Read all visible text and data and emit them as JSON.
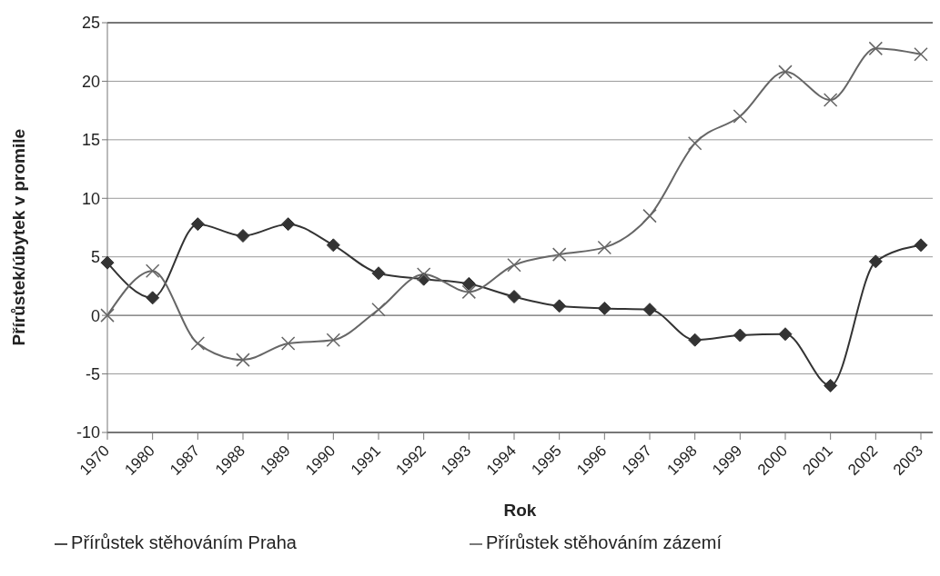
{
  "chart_data": {
    "type": "line",
    "xlabel": "Rok",
    "ylabel": "Přírůstek/úbytek v promile",
    "categories": [
      "1970",
      "1980",
      "1987",
      "1988",
      "1989",
      "1990",
      "1991",
      "1992",
      "1993",
      "1994",
      "1995",
      "1996",
      "1997",
      "1998",
      "1999",
      "2000",
      "2001",
      "2002",
      "2003"
    ],
    "series": [
      {
        "name": "Přírůstek stěhováním Praha",
        "color": "#333333",
        "marker": "diamond",
        "values": [
          4.5,
          1.5,
          7.8,
          6.8,
          7.8,
          6.0,
          3.6,
          3.1,
          2.7,
          1.6,
          0.8,
          0.6,
          0.5,
          -2.1,
          -1.7,
          -1.6,
          -6.0,
          4.6,
          6.0
        ]
      },
      {
        "name": "Přírůstek stěhováním zázemí",
        "color": "#666666",
        "marker": "cross",
        "values": [
          0,
          3.8,
          -2.4,
          -3.8,
          -2.4,
          -2.1,
          0.5,
          3.5,
          2.0,
          4.3,
          5.2,
          5.8,
          8.5,
          14.7,
          17.0,
          20.8,
          18.4,
          22.8,
          22.3
        ]
      }
    ],
    "ylim": [
      -10,
      25
    ],
    "yticks": [
      -10,
      -5,
      0,
      5,
      10,
      15,
      20,
      25
    ],
    "grid": "y",
    "legend": "bottom"
  }
}
